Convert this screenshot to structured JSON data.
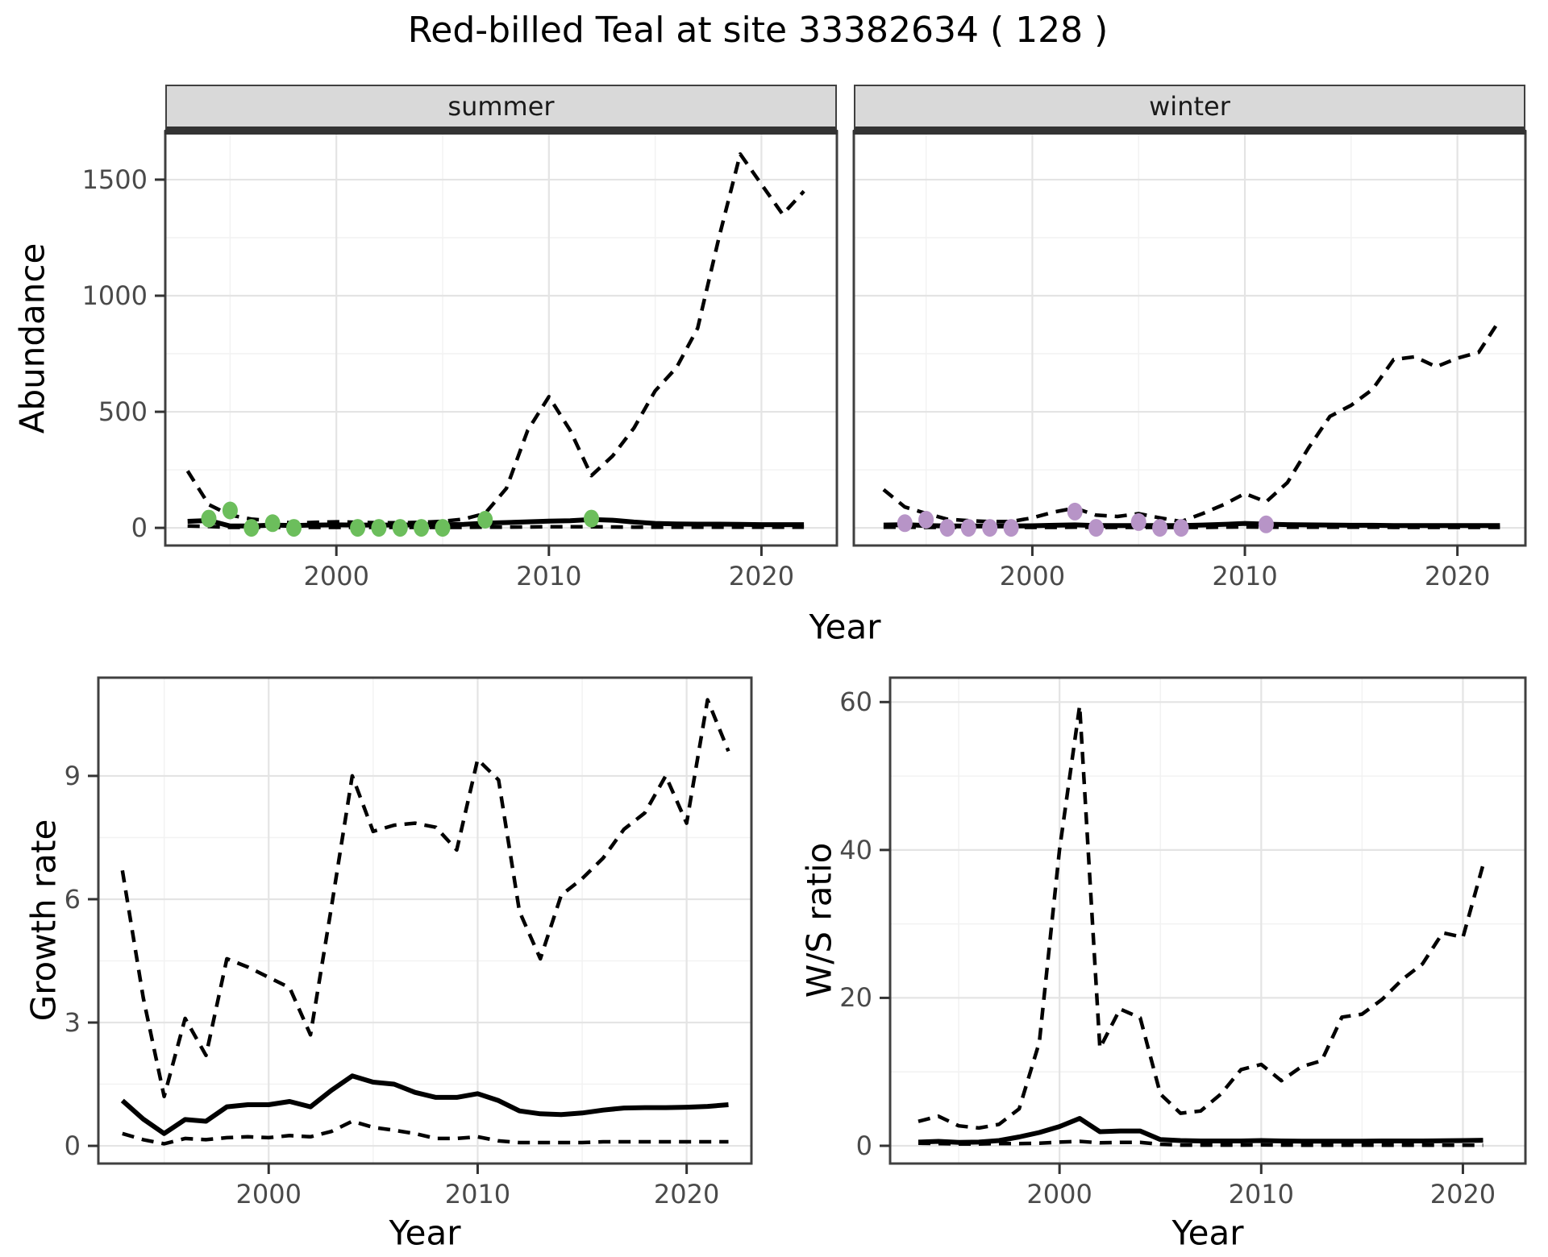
{
  "title": "Red-billed Teal at site 33382634 ( 128 )",
  "colors": {
    "summer_point": "#6CBE5C",
    "winter_point": "#B794C7",
    "line": "#000000",
    "strip_bg": "#D9D9D9",
    "panel_border": "#404040",
    "grid_major": "#E4E4E4",
    "grid_minor": "#F2F2F2",
    "axis_text": "#4A4A4A"
  },
  "chart_data": [
    {
      "id": "abundance-summer",
      "type": "line",
      "facet_label": "summer",
      "xlabel": "Year",
      "ylabel": "Abundance",
      "x_ticks": [
        2000,
        2010,
        2020
      ],
      "x_minor": [
        1995,
        2005,
        2015
      ],
      "y_ticks": [
        0,
        500,
        1000,
        1500
      ],
      "y_minor": [
        250,
        750,
        1250
      ],
      "xlim": [
        1991.95,
        2023.55
      ],
      "ylim": [
        -76,
        1708
      ],
      "grid": true,
      "legend": "none",
      "years": [
        1993,
        1994,
        1995,
        1996,
        1997,
        1998,
        1999,
        2000,
        2001,
        2002,
        2003,
        2004,
        2005,
        2006,
        2007,
        2008,
        2009,
        2010,
        2011,
        2012,
        2013,
        2014,
        2015,
        2016,
        2017,
        2018,
        2019,
        2020,
        2021,
        2022
      ],
      "series": [
        {
          "name": "upper 95% CI",
          "style": "dashed",
          "values": [
            245,
            100,
            55,
            38,
            30,
            20,
            24,
            26,
            24,
            22,
            22,
            24,
            28,
            38,
            62,
            170,
            420,
            565,
            420,
            225,
            310,
            430,
            590,
            690,
            860,
            1250,
            1610,
            1480,
            1350,
            1450
          ]
        },
        {
          "name": "median estimate",
          "style": "solid",
          "values": [
            28,
            32,
            8,
            8,
            12,
            10,
            12,
            13,
            12,
            12,
            12,
            13,
            13,
            15,
            20,
            23,
            26,
            29,
            31,
            36,
            33,
            25,
            19,
            17,
            16,
            16,
            15,
            14,
            14,
            14
          ]
        },
        {
          "name": "lower 95% CI",
          "style": "dashed",
          "values": [
            8,
            6,
            2,
            2,
            2,
            2,
            2,
            2,
            2,
            2,
            2,
            2,
            2,
            2,
            3,
            3,
            4,
            5,
            5,
            5,
            4,
            3,
            3,
            3,
            3,
            3,
            3,
            3,
            3,
            3
          ]
        }
      ],
      "points": {
        "name": "observed-summer-counts",
        "color": "#6CBE5C",
        "data": [
          [
            1994,
            40
          ],
          [
            1995,
            75
          ],
          [
            1996,
            0
          ],
          [
            1997,
            20
          ],
          [
            1998,
            0
          ],
          [
            2001,
            0
          ],
          [
            2002,
            0
          ],
          [
            2003,
            0
          ],
          [
            2004,
            0
          ],
          [
            2005,
            0
          ],
          [
            2007,
            35
          ],
          [
            2012,
            40
          ]
        ]
      }
    },
    {
      "id": "abundance-winter",
      "type": "line",
      "facet_label": "winter",
      "xlabel": "Year",
      "ylabel": "Abundance",
      "x_ticks": [
        2000,
        2010,
        2020
      ],
      "x_minor": [
        1995,
        2005,
        2015
      ],
      "y_ticks": [
        0,
        500,
        1000,
        1500
      ],
      "y_minor": [
        250,
        750,
        1250
      ],
      "xlim": [
        1991.6,
        2023.2
      ],
      "ylim": [
        -76,
        1708
      ],
      "grid": true,
      "legend": "none",
      "years": [
        1993,
        1994,
        1995,
        1996,
        1997,
        1998,
        1999,
        2000,
        2001,
        2002,
        2003,
        2004,
        2005,
        2006,
        2007,
        2008,
        2009,
        2010,
        2011,
        2012,
        2013,
        2014,
        2015,
        2016,
        2017,
        2018,
        2019,
        2020,
        2021,
        2022
      ],
      "series": [
        {
          "name": "upper 95% CI",
          "style": "dashed",
          "values": [
            165,
            90,
            62,
            37,
            31,
            27,
            27,
            43,
            68,
            85,
            55,
            49,
            61,
            43,
            27,
            61,
            100,
            148,
            112,
            195,
            345,
            480,
            528,
            596,
            725,
            737,
            694,
            731,
            756,
            897
          ]
        },
        {
          "name": "median estimate",
          "style": "solid",
          "values": [
            12,
            14,
            10,
            8,
            8,
            8,
            8,
            9,
            11,
            13,
            10,
            10,
            10,
            10,
            10,
            12,
            15,
            19,
            16,
            14,
            13,
            12,
            11,
            11,
            10,
            10,
            10,
            10,
            10,
            10
          ]
        },
        {
          "name": "lower 95% CI",
          "style": "dashed",
          "values": [
            3,
            3,
            2,
            2,
            2,
            2,
            2,
            2,
            2,
            3,
            2,
            2,
            2,
            2,
            2,
            2,
            3,
            4,
            3,
            3,
            3,
            3,
            3,
            3,
            2,
            2,
            2,
            2,
            2,
            2
          ]
        }
      ],
      "points": {
        "name": "observed-winter-counts",
        "color": "#B794C7",
        "data": [
          [
            1994,
            20
          ],
          [
            1995,
            35
          ],
          [
            1996,
            0
          ],
          [
            1997,
            0
          ],
          [
            1998,
            0
          ],
          [
            1999,
            0
          ],
          [
            2002,
            70
          ],
          [
            2003,
            0
          ],
          [
            2005,
            25
          ],
          [
            2006,
            0
          ],
          [
            2007,
            0
          ],
          [
            2011,
            15
          ]
        ]
      }
    },
    {
      "id": "growth-rate",
      "type": "line",
      "facet_label": "",
      "xlabel": "Year",
      "ylabel": "Growth rate",
      "x_ticks": [
        2000,
        2010,
        2020
      ],
      "x_minor": [
        1995,
        2005,
        2015
      ],
      "y_ticks": [
        0,
        3,
        6,
        9
      ],
      "y_minor": [
        1.5,
        4.5,
        7.5
      ],
      "xlim": [
        1991.85,
        2023.1
      ],
      "ylim": [
        -0.43,
        11.39
      ],
      "grid": true,
      "legend": "none",
      "years": [
        1993,
        1994,
        1995,
        1996,
        1997,
        1998,
        1999,
        2000,
        2001,
        2002,
        2003,
        2004,
        2005,
        2006,
        2007,
        2008,
        2009,
        2010,
        2011,
        2012,
        2013,
        2014,
        2015,
        2016,
        2017,
        2018,
        2019,
        2020,
        2021,
        2022
      ],
      "series": [
        {
          "name": "upper 95% CI",
          "style": "dashed",
          "values": [
            6.7,
            3.6,
            1.2,
            3.1,
            2.2,
            4.55,
            4.35,
            4.1,
            3.85,
            2.7,
            5.8,
            9.0,
            7.65,
            7.8,
            7.85,
            7.75,
            7.2,
            9.4,
            8.9,
            5.7,
            4.55,
            6.1,
            6.5,
            7.0,
            7.7,
            8.1,
            9.0,
            7.85,
            10.85,
            9.6
          ]
        },
        {
          "name": "median estimate",
          "style": "solid",
          "values": [
            1.1,
            0.65,
            0.3,
            0.64,
            0.6,
            0.95,
            1.0,
            1.0,
            1.08,
            0.95,
            1.35,
            1.7,
            1.55,
            1.5,
            1.3,
            1.18,
            1.18,
            1.27,
            1.1,
            0.85,
            0.78,
            0.76,
            0.8,
            0.87,
            0.92,
            0.93,
            0.93,
            0.94,
            0.96,
            1.0
          ]
        },
        {
          "name": "lower 95% CI",
          "style": "dashed",
          "values": [
            0.3,
            0.15,
            0.05,
            0.18,
            0.15,
            0.2,
            0.22,
            0.2,
            0.25,
            0.22,
            0.35,
            0.6,
            0.45,
            0.38,
            0.3,
            0.18,
            0.18,
            0.22,
            0.12,
            0.08,
            0.08,
            0.08,
            0.08,
            0.1,
            0.1,
            0.1,
            0.1,
            0.1,
            0.1,
            0.1
          ]
        }
      ],
      "points": null
    },
    {
      "id": "ws-ratio",
      "type": "line",
      "facet_label": "",
      "xlabel": "Year",
      "ylabel": "W/S ratio",
      "x_ticks": [
        2000,
        2010,
        2020
      ],
      "x_minor": [
        1995,
        2005,
        2015
      ],
      "y_ticks": [
        0,
        20,
        40,
        60
      ],
      "y_minor": [
        10,
        30,
        50
      ],
      "xlim": [
        1991.6,
        2023.1
      ],
      "ylim": [
        -2.4,
        63.3
      ],
      "grid": true,
      "legend": "none",
      "years": [
        1993,
        1994,
        1995,
        1996,
        1997,
        1998,
        1999,
        2000,
        2001,
        2002,
        2003,
        2004,
        2005,
        2006,
        2007,
        2008,
        2009,
        2010,
        2011,
        2012,
        2013,
        2014,
        2015,
        2016,
        2017,
        2018,
        2019,
        2020,
        2021
      ],
      "series": [
        {
          "name": "upper 95% CI",
          "style": "dashed",
          "values": [
            3.3,
            4.0,
            2.7,
            2.4,
            2.9,
            5.0,
            14,
            40,
            59.5,
            13.2,
            18.5,
            17.3,
            7.0,
            4.4,
            4.7,
            7.0,
            10.3,
            11.0,
            8.8,
            10.7,
            11.5,
            17.4,
            17.8,
            19.8,
            22.5,
            24.6,
            28.8,
            28.2,
            38.0
          ]
        },
        {
          "name": "median estimate",
          "style": "solid",
          "values": [
            0.5,
            0.6,
            0.45,
            0.5,
            0.7,
            1.2,
            1.8,
            2.6,
            3.7,
            1.9,
            2.0,
            2.0,
            0.85,
            0.7,
            0.65,
            0.65,
            0.65,
            0.7,
            0.65,
            0.62,
            0.62,
            0.62,
            0.62,
            0.65,
            0.65,
            0.65,
            0.68,
            0.7,
            0.75
          ]
        },
        {
          "name": "lower 95% CI",
          "style": "dashed",
          "values": [
            0.35,
            0.3,
            0.25,
            0.25,
            0.3,
            0.3,
            0.35,
            0.5,
            0.6,
            0.4,
            0.45,
            0.45,
            0.2,
            0.1,
            0.1,
            0.1,
            0.1,
            0.12,
            0.1,
            0.08,
            0.08,
            0.08,
            0.08,
            0.08,
            0.08,
            0.08,
            0.08,
            0.08,
            0.08
          ]
        }
      ],
      "points": null
    }
  ]
}
